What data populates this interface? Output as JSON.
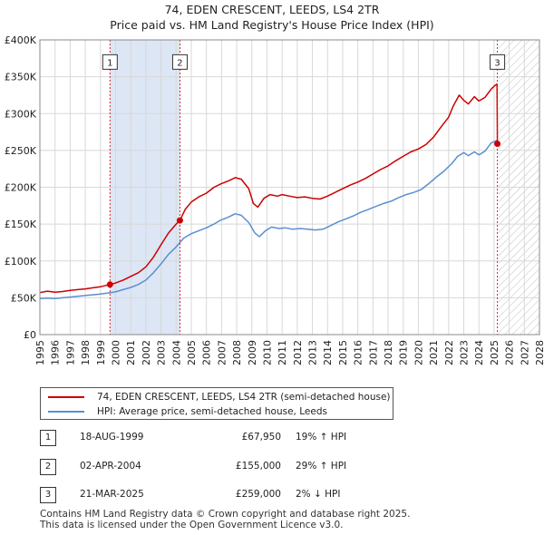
{
  "title": {
    "line1": "74, EDEN CRESCENT, LEEDS, LS4 2TR",
    "line2": "Price paid vs. HM Land Registry's House Price Index (HPI)"
  },
  "colors": {
    "property": "#cc0000",
    "hpi": "#5b8fd0",
    "shade": "#dde6f5",
    "grid": "#d8d8d8",
    "marker_line": "#dd2222"
  },
  "chart_data": {
    "type": "line",
    "title": "Price paid vs. HM Land Registry's House Price Index (HPI)",
    "xlim": [
      1995,
      2028
    ],
    "ylim": [
      0,
      400000
    ],
    "xticks": [
      1995,
      1996,
      1997,
      1998,
      1999,
      2000,
      2001,
      2002,
      2003,
      2004,
      2005,
      2006,
      2007,
      2008,
      2009,
      2010,
      2011,
      2012,
      2013,
      2014,
      2015,
      2016,
      2017,
      2018,
      2019,
      2020,
      2021,
      2022,
      2023,
      2024,
      2025,
      2026,
      2027,
      2028
    ],
    "yticks": [
      {
        "value": 0,
        "label": "£0"
      },
      {
        "value": 50000,
        "label": "£50K"
      },
      {
        "value": 100000,
        "label": "£100K"
      },
      {
        "value": 150000,
        "label": "£150K"
      },
      {
        "value": 200000,
        "label": "£200K"
      },
      {
        "value": 250000,
        "label": "£250K"
      },
      {
        "value": 300000,
        "label": "£300K"
      },
      {
        "value": 350000,
        "label": "£350K"
      },
      {
        "value": 400000,
        "label": "£400K"
      }
    ],
    "shaded_ranges": [
      {
        "from": 1999.63,
        "to": 2004.25
      }
    ],
    "forecast_hatch_from": 2025.3,
    "series": [
      {
        "name": "74, EDEN CRESCENT, LEEDS, LS4 2TR (semi-detached house)",
        "color": "#cc0000",
        "points": [
          [
            1995.0,
            57000
          ],
          [
            1995.5,
            59000
          ],
          [
            1996.0,
            57500
          ],
          [
            1996.5,
            58500
          ],
          [
            1997.0,
            60000
          ],
          [
            1997.5,
            61000
          ],
          [
            1998.0,
            62000
          ],
          [
            1998.5,
            63500
          ],
          [
            1999.0,
            65000
          ],
          [
            1999.63,
            67950
          ],
          [
            2000.0,
            70000
          ],
          [
            2000.5,
            74000
          ],
          [
            2001.0,
            79000
          ],
          [
            2001.5,
            84000
          ],
          [
            2002.0,
            92000
          ],
          [
            2002.5,
            105000
          ],
          [
            2003.0,
            122000
          ],
          [
            2003.5,
            138000
          ],
          [
            2004.0,
            150000
          ],
          [
            2004.25,
            155000
          ],
          [
            2004.6,
            170000
          ],
          [
            2005.0,
            180000
          ],
          [
            2005.5,
            187000
          ],
          [
            2006.0,
            192000
          ],
          [
            2006.5,
            200000
          ],
          [
            2007.0,
            205000
          ],
          [
            2007.5,
            209000
          ],
          [
            2007.9,
            213000
          ],
          [
            2008.3,
            211000
          ],
          [
            2008.8,
            198000
          ],
          [
            2009.1,
            178000
          ],
          [
            2009.4,
            173000
          ],
          [
            2009.8,
            185000
          ],
          [
            2010.2,
            190000
          ],
          [
            2010.7,
            188000
          ],
          [
            2011.0,
            190000
          ],
          [
            2011.5,
            188000
          ],
          [
            2012.0,
            186000
          ],
          [
            2012.5,
            187000
          ],
          [
            2013.0,
            185000
          ],
          [
            2013.5,
            184000
          ],
          [
            2014.0,
            188000
          ],
          [
            2014.5,
            193000
          ],
          [
            2015.0,
            198000
          ],
          [
            2015.5,
            203000
          ],
          [
            2016.0,
            207000
          ],
          [
            2016.5,
            212000
          ],
          [
            2017.0,
            218000
          ],
          [
            2017.5,
            224000
          ],
          [
            2018.0,
            229000
          ],
          [
            2018.5,
            236000
          ],
          [
            2019.0,
            242000
          ],
          [
            2019.5,
            248000
          ],
          [
            2020.0,
            252000
          ],
          [
            2020.5,
            258000
          ],
          [
            2021.0,
            268000
          ],
          [
            2021.5,
            282000
          ],
          [
            2022.0,
            295000
          ],
          [
            2022.3,
            310000
          ],
          [
            2022.7,
            325000
          ],
          [
            2023.0,
            318000
          ],
          [
            2023.3,
            313000
          ],
          [
            2023.7,
            323000
          ],
          [
            2024.0,
            317000
          ],
          [
            2024.4,
            322000
          ],
          [
            2024.8,
            333000
          ],
          [
            2025.05,
            338000
          ],
          [
            2025.2,
            340000
          ],
          [
            2025.22,
            259000
          ]
        ]
      },
      {
        "name": "HPI: Average price, semi-detached house, Leeds",
        "color": "#5b8fd0",
        "points": [
          [
            1995.0,
            49000
          ],
          [
            1995.5,
            49500
          ],
          [
            1996.0,
            49000
          ],
          [
            1996.5,
            50000
          ],
          [
            1997.0,
            51000
          ],
          [
            1997.5,
            52000
          ],
          [
            1998.0,
            53000
          ],
          [
            1998.5,
            54000
          ],
          [
            1999.0,
            55000
          ],
          [
            1999.5,
            56500
          ],
          [
            2000.0,
            58000
          ],
          [
            2000.5,
            61000
          ],
          [
            2001.0,
            64000
          ],
          [
            2001.5,
            68000
          ],
          [
            2002.0,
            74000
          ],
          [
            2002.5,
            84000
          ],
          [
            2003.0,
            96000
          ],
          [
            2003.5,
            109000
          ],
          [
            2004.0,
            119000
          ],
          [
            2004.5,
            131000
          ],
          [
            2005.0,
            137000
          ],
          [
            2005.5,
            141000
          ],
          [
            2006.0,
            145000
          ],
          [
            2006.5,
            150000
          ],
          [
            2006.9,
            155000
          ],
          [
            2007.4,
            159000
          ],
          [
            2007.9,
            164000
          ],
          [
            2008.3,
            162000
          ],
          [
            2008.8,
            152000
          ],
          [
            2009.2,
            138000
          ],
          [
            2009.5,
            133000
          ],
          [
            2009.9,
            141000
          ],
          [
            2010.3,
            146000
          ],
          [
            2010.8,
            144000
          ],
          [
            2011.2,
            145000
          ],
          [
            2011.7,
            143000
          ],
          [
            2012.2,
            144000
          ],
          [
            2012.7,
            143000
          ],
          [
            2013.2,
            142000
          ],
          [
            2013.7,
            143000
          ],
          [
            2014.2,
            148000
          ],
          [
            2014.7,
            153000
          ],
          [
            2015.2,
            157000
          ],
          [
            2015.7,
            161000
          ],
          [
            2016.2,
            166000
          ],
          [
            2016.7,
            170000
          ],
          [
            2017.2,
            174000
          ],
          [
            2017.7,
            178000
          ],
          [
            2018.2,
            181000
          ],
          [
            2018.7,
            186000
          ],
          [
            2019.2,
            190000
          ],
          [
            2019.7,
            193000
          ],
          [
            2020.2,
            197000
          ],
          [
            2020.7,
            205000
          ],
          [
            2021.2,
            214000
          ],
          [
            2021.7,
            222000
          ],
          [
            2022.2,
            232000
          ],
          [
            2022.6,
            242000
          ],
          [
            2023.0,
            247000
          ],
          [
            2023.3,
            243000
          ],
          [
            2023.7,
            248000
          ],
          [
            2024.0,
            244000
          ],
          [
            2024.4,
            249000
          ],
          [
            2024.8,
            260000
          ],
          [
            2025.22,
            264000
          ]
        ]
      }
    ],
    "sales": [
      {
        "label": "1",
        "x": 1999.63,
        "price": 67950
      },
      {
        "label": "2",
        "x": 2004.25,
        "price": 155000
      },
      {
        "label": "3",
        "x": 2025.22,
        "price": 259000
      }
    ],
    "marker_box_value": 370000
  },
  "legend": {
    "property_label": "74, EDEN CRESCENT, LEEDS, LS4 2TR (semi-detached house)",
    "hpi_label": "HPI: Average price, semi-detached house, Leeds"
  },
  "transactions": [
    {
      "num": "1",
      "date": "18-AUG-1999",
      "price": "£67,950",
      "hpi": "19% ↑ HPI"
    },
    {
      "num": "2",
      "date": "02-APR-2004",
      "price": "£155,000",
      "hpi": "29% ↑ HPI"
    },
    {
      "num": "3",
      "date": "21-MAR-2025",
      "price": "£259,000",
      "hpi": "2% ↓ HPI"
    }
  ],
  "footer": {
    "line1": "Contains HM Land Registry data © Crown copyright and database right 2025.",
    "line2": "This data is licensed under the Open Government Licence v3.0."
  }
}
